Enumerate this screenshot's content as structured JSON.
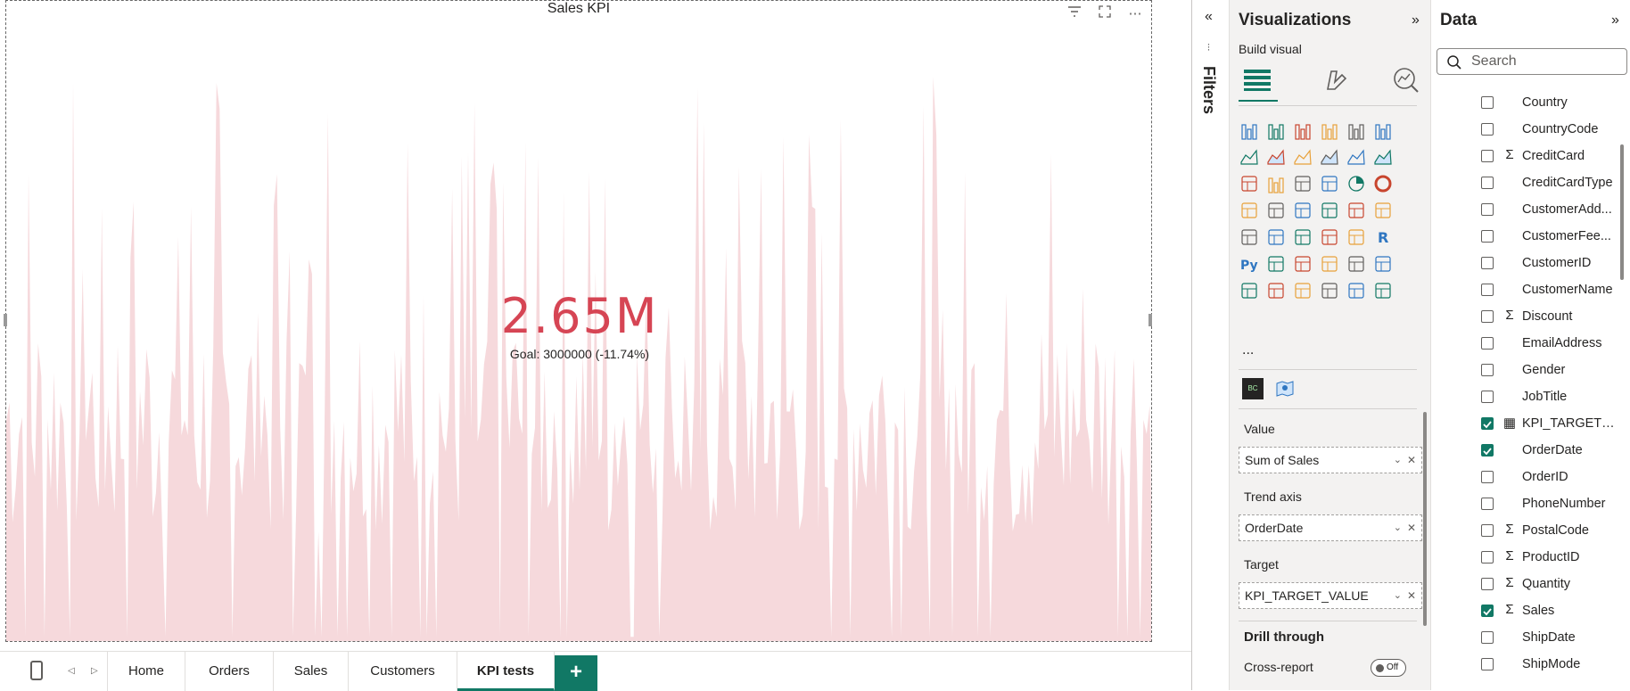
{
  "visual": {
    "title": "Sales KPI",
    "kpi_value": "2.65M",
    "kpi_indicator": "!",
    "goal": "Goal: 3000000 (-11.74%)",
    "colors": {
      "kpi_bad": "#d64554",
      "trend_fill": "#f6d9dc"
    },
    "header_icons": [
      "filter-icon",
      "focus-mode-icon",
      "more-options-icon"
    ]
  },
  "tabs": {
    "items": [
      {
        "label": "Home"
      },
      {
        "label": "Orders"
      },
      {
        "label": "Sales"
      },
      {
        "label": "Customers"
      },
      {
        "label": "KPI tests"
      }
    ],
    "active": "KPI tests",
    "add_label": "+"
  },
  "filters": {
    "label": "Filters"
  },
  "visualizations": {
    "title": "Visualizations",
    "build_visual": "Build visual",
    "more": "...",
    "wells": [
      {
        "label": "Value",
        "field": "Sum of Sales"
      },
      {
        "label": "Trend axis",
        "field": "OrderDate"
      },
      {
        "label": "Target",
        "field": "KPI_TARGET_VALUE"
      }
    ],
    "drill_through": "Drill through",
    "cross_report": "Cross-report",
    "toggle": "Off"
  },
  "data": {
    "title": "Data",
    "search_placeholder": "Search",
    "fields": [
      {
        "name": "Country",
        "sym": "",
        "checked": false
      },
      {
        "name": "CountryCode",
        "sym": "",
        "checked": false
      },
      {
        "name": "CreditCard",
        "sym": "Σ",
        "checked": false
      },
      {
        "name": "CreditCardType",
        "sym": "",
        "checked": false
      },
      {
        "name": "CustomerAdd...",
        "sym": "",
        "checked": false
      },
      {
        "name": "CustomerFee...",
        "sym": "",
        "checked": false
      },
      {
        "name": "CustomerID",
        "sym": "",
        "checked": false
      },
      {
        "name": "CustomerName",
        "sym": "",
        "checked": false
      },
      {
        "name": "Discount",
        "sym": "Σ",
        "checked": false
      },
      {
        "name": "EmailAddress",
        "sym": "",
        "checked": false
      },
      {
        "name": "Gender",
        "sym": "",
        "checked": false
      },
      {
        "name": "JobTitle",
        "sym": "",
        "checked": false
      },
      {
        "name": "KPI_TARGET_V...",
        "sym": "▦",
        "checked": true
      },
      {
        "name": "OrderDate",
        "sym": "",
        "checked": true
      },
      {
        "name": "OrderID",
        "sym": "",
        "checked": false
      },
      {
        "name": "PhoneNumber",
        "sym": "",
        "checked": false
      },
      {
        "name": "PostalCode",
        "sym": "Σ",
        "checked": false
      },
      {
        "name": "ProductID",
        "sym": "Σ",
        "checked": false
      },
      {
        "name": "Quantity",
        "sym": "Σ",
        "checked": false
      },
      {
        "name": "Sales",
        "sym": "Σ",
        "checked": true
      },
      {
        "name": "ShipDate",
        "sym": "",
        "checked": false
      },
      {
        "name": "ShipMode",
        "sym": "",
        "checked": false
      }
    ]
  }
}
